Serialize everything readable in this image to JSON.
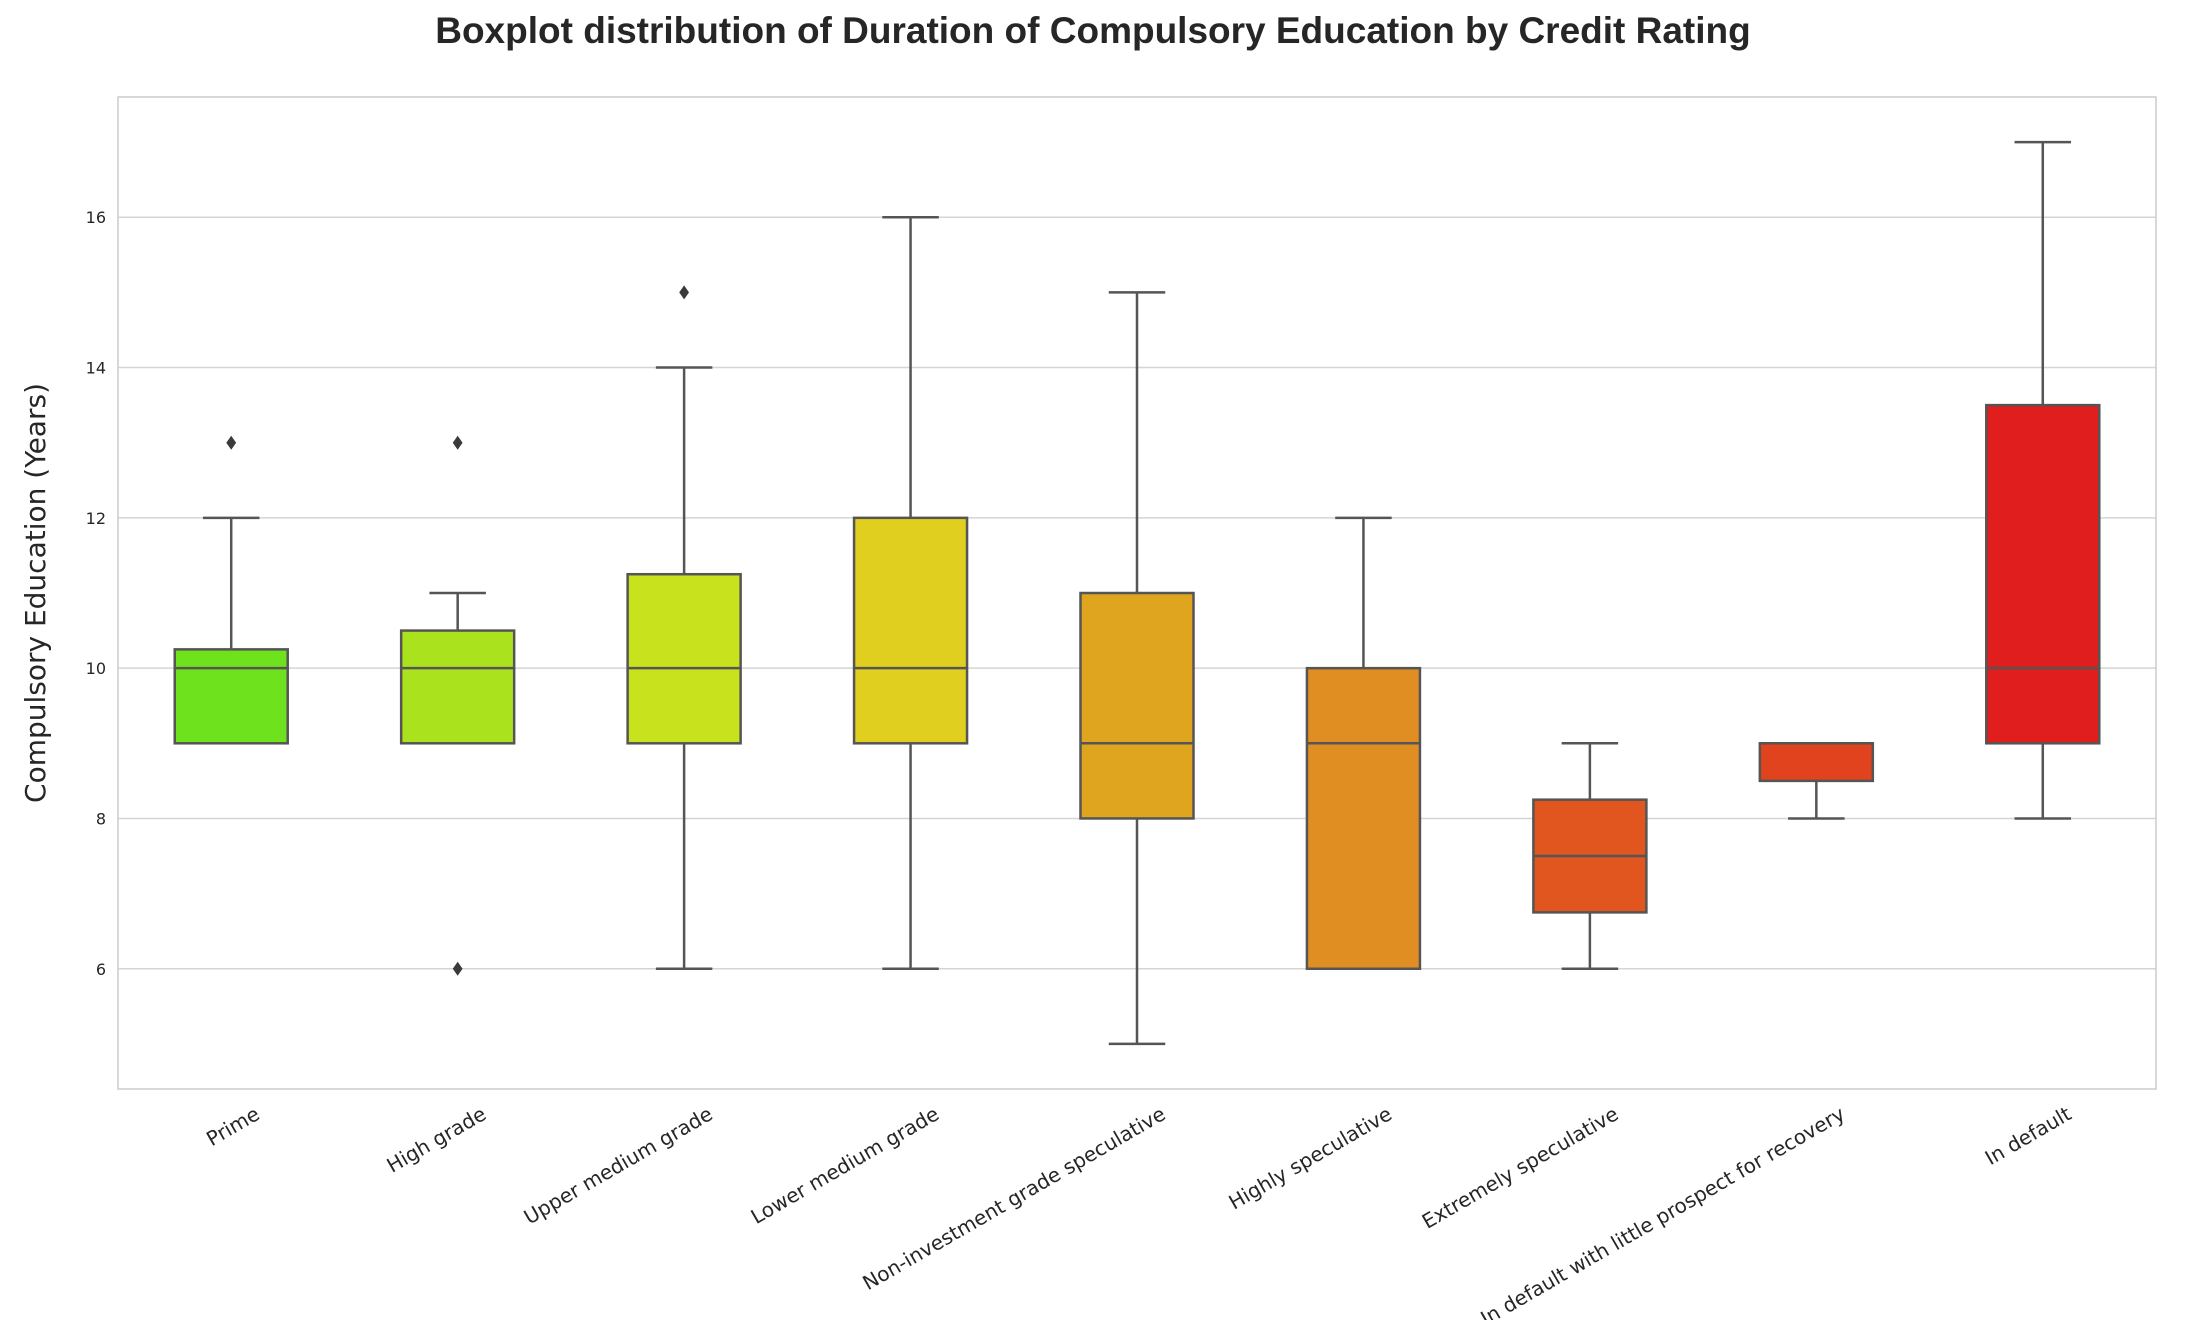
{
  "chart_data": {
    "type": "boxplot",
    "title": "Boxplot distribution of Duration of Compulsory Education by Credit Rating",
    "xlabel": "",
    "ylabel": "Compulsory Education (Years)",
    "ylim": [
      4.4,
      17.6
    ],
    "yticks": [
      6,
      8,
      10,
      12,
      14,
      16
    ],
    "grid": true,
    "categories": [
      "Prime",
      "High grade",
      "Upper medium grade",
      "Lower medium grade",
      "Non-investment grade speculative",
      "Highly speculative",
      "Extremely speculative",
      "In default with little prospect for recovery",
      "In default"
    ],
    "boxes": [
      {
        "whisker_low": 9,
        "q1": 9,
        "median": 10,
        "q3": 10.25,
        "whisker_high": 12,
        "outliers": [
          13
        ],
        "color": "#6fe21e"
      },
      {
        "whisker_low": 9,
        "q1": 9,
        "median": 10,
        "q3": 10.5,
        "whisker_high": 11,
        "outliers": [
          13,
          6
        ],
        "color": "#abe21e"
      },
      {
        "whisker_low": 6,
        "q1": 9,
        "median": 10,
        "q3": 11.25,
        "whisker_high": 14,
        "outliers": [
          15
        ],
        "color": "#c8e21e"
      },
      {
        "whisker_low": 6,
        "q1": 9,
        "median": 10,
        "q3": 12,
        "whisker_high": 16,
        "outliers": [],
        "color": "#e0cf1e"
      },
      {
        "whisker_low": 5,
        "q1": 8,
        "median": 9,
        "q3": 11,
        "whisker_high": 15,
        "outliers": [],
        "color": "#e0a51e"
      },
      {
        "whisker_low": 6,
        "q1": 6,
        "median": 9,
        "q3": 10,
        "whisker_high": 12,
        "outliers": [],
        "color": "#e08e22"
      },
      {
        "whisker_low": 6,
        "q1": 6.75,
        "median": 7.5,
        "q3": 8.25,
        "whisker_high": 9,
        "outliers": [],
        "color": "#e0561e"
      },
      {
        "whisker_low": 8,
        "q1": 8.5,
        "median": 9,
        "q3": 9,
        "whisker_high": 9,
        "outliers": [],
        "color": "#e0431e"
      },
      {
        "whisker_low": 8,
        "q1": 9,
        "median": 10,
        "q3": 13.5,
        "whisker_high": 17,
        "outliers": [],
        "color": "#e01e1e"
      }
    ]
  }
}
